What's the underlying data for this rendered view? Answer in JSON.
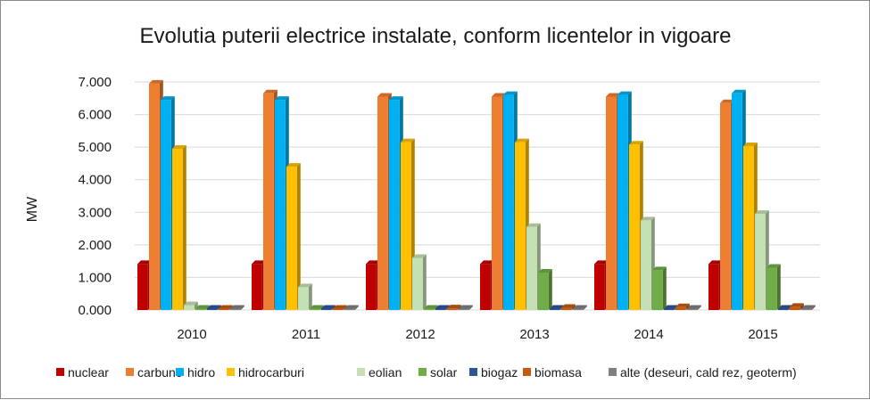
{
  "chart_data": {
    "type": "bar",
    "title": "Evolutia puterii electrice instalate, conform licentelor in vigoare",
    "xlabel": "",
    "ylabel": "MW",
    "ylim": [
      0,
      7000
    ],
    "yticks": [
      "0.000",
      "1.000",
      "2.000",
      "3.000",
      "4.000",
      "5.000",
      "6.000",
      "7.000"
    ],
    "grid": true,
    "legend_position": "bottom",
    "categories": [
      "2010",
      "2011",
      "2012",
      "2013",
      "2014",
      "2015"
    ],
    "series": [
      {
        "name": "nuclear",
        "color": "#c00000",
        "values": [
          1410,
          1410,
          1410,
          1410,
          1410,
          1410
        ]
      },
      {
        "name": "carbune",
        "color": "#ed7d31",
        "values": [
          6950,
          6650,
          6550,
          6550,
          6550,
          6350
        ]
      },
      {
        "name": "hidro",
        "color": "#00b0f0",
        "values": [
          6450,
          6450,
          6450,
          6600,
          6600,
          6650
        ]
      },
      {
        "name": "hidrocarburi",
        "color": "#ffc000",
        "values": [
          4950,
          4400,
          5150,
          5150,
          5080,
          5030
        ]
      },
      {
        "name": "eolian",
        "color": "#c5e0b4",
        "values": [
          150,
          700,
          1600,
          2550,
          2750,
          2950
        ]
      },
      {
        "name": "solar",
        "color": "#70ad47",
        "values": [
          0,
          0,
          40,
          1150,
          1220,
          1300
        ]
      },
      {
        "name": "biogaz",
        "color": "#2e5597",
        "values": [
          5,
          5,
          10,
          15,
          20,
          25
        ]
      },
      {
        "name": "biomasa",
        "color": "#c55a11",
        "values": [
          40,
          40,
          50,
          70,
          90,
          100
        ]
      },
      {
        "name": "alte (deseuri, cald rez, geoterm)",
        "color": "#808080",
        "values": [
          5,
          5,
          5,
          5,
          5,
          5
        ]
      }
    ]
  }
}
